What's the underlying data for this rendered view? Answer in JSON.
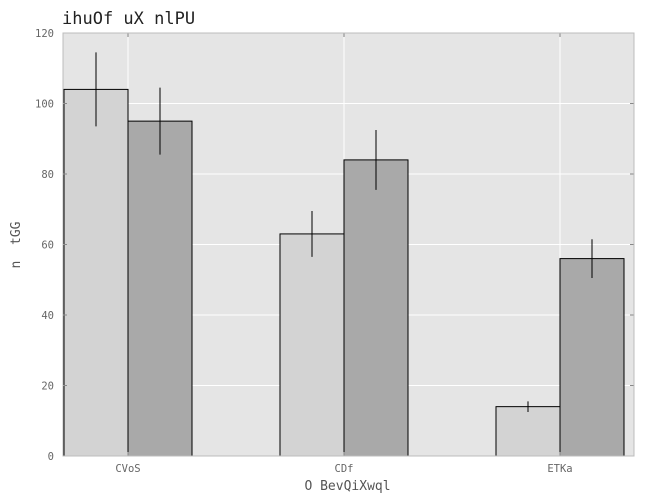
{
  "chart_data": {
    "type": "bar",
    "title": "ihuOf uX nlPU",
    "xlabel": "O BevQiXwql",
    "ylabel": "n  tGG",
    "categories": [
      "CVoS",
      "CDf",
      "ETKa"
    ],
    "series": [
      {
        "values": [
          104,
          63,
          14
        ],
        "errors": [
          10.5,
          6.5,
          1.5
        ],
        "color": "#d3d3d3"
      },
      {
        "values": [
          95,
          84,
          56
        ],
        "errors": [
          9.5,
          8.5,
          5.5
        ],
        "color": "#a9a9a9"
      }
    ],
    "ylim": [
      0,
      120
    ],
    "yticks": [
      0,
      20,
      40,
      60,
      80,
      100,
      120
    ],
    "grid": true,
    "legend": "none",
    "colors": {
      "plot_background": "#e5e5e5",
      "grid": "#ffffff",
      "bar_edge": "#000000"
    }
  }
}
